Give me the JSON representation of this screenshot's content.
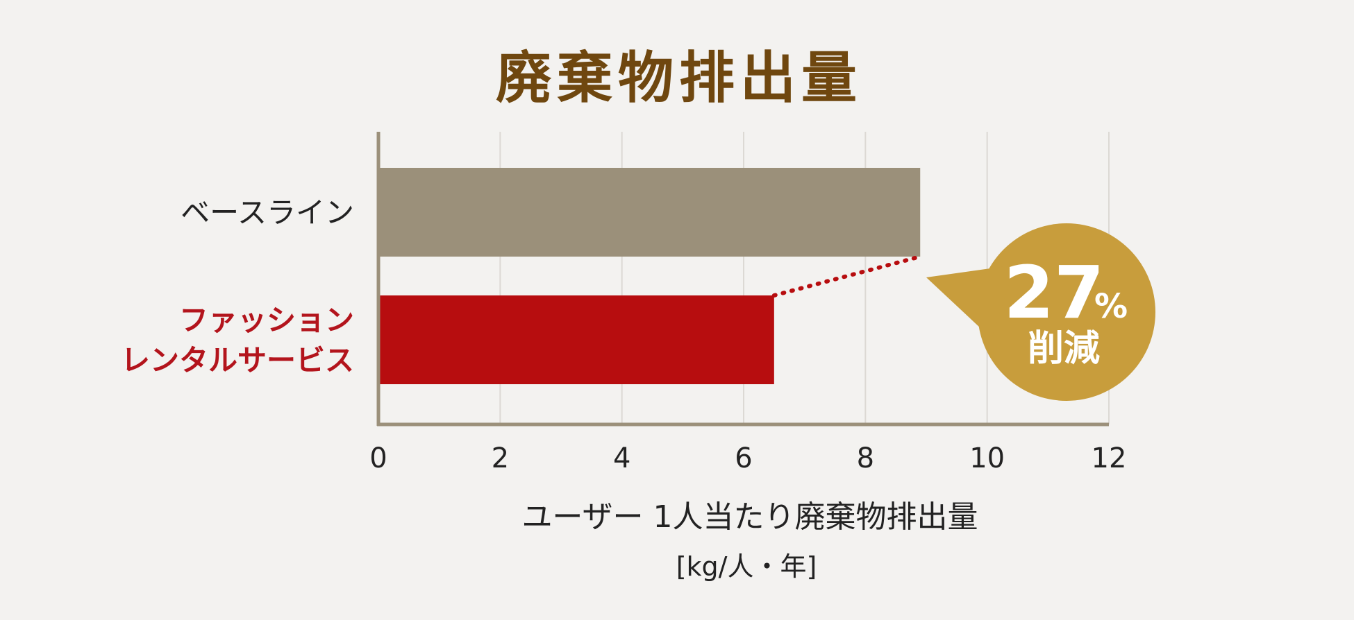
{
  "colors": {
    "title": "#6f470f",
    "baseline_bar": "#9b907a",
    "rental_bar": "#b70d0f",
    "rental_label": "#b3141c",
    "baseline_label": "#222222",
    "grid": "#dcd9d4",
    "axis": "#9b907a",
    "callout": "#c89d3c"
  },
  "chart_data": {
    "type": "bar",
    "orientation": "horizontal",
    "title": "廃棄物排出量",
    "categories": [
      [
        "ベースライン"
      ],
      [
        "ファッション",
        "レンタルサービス"
      ]
    ],
    "values": [
      8.9,
      6.5
    ],
    "xlim": [
      0,
      12
    ],
    "xticks": [
      "0",
      "2",
      "4",
      "6",
      "8",
      "10",
      "12"
    ],
    "xlabel": "ユーザー 1人当たり廃棄物排出量",
    "xunit": "[kg/人・年]",
    "grid": "vertical",
    "annotation": {
      "value": "27",
      "unit": "%",
      "text": "削減"
    }
  }
}
